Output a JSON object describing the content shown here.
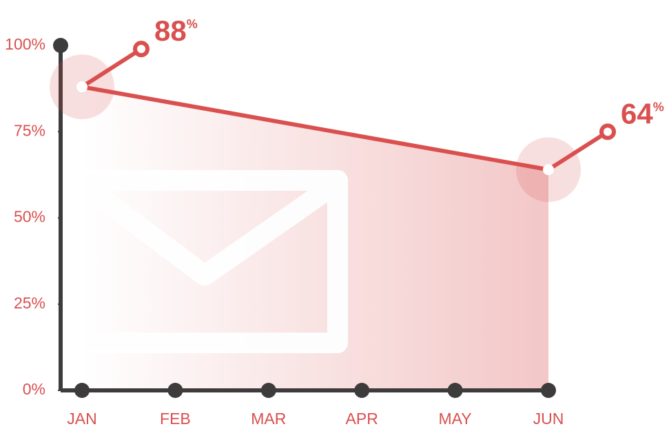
{
  "chart_data": {
    "type": "line",
    "categories": [
      "JAN",
      "FEB",
      "MAR",
      "APR",
      "MAY",
      "JUN"
    ],
    "series": [
      {
        "x": [
          "JAN",
          "JUN"
        ],
        "values": [
          88,
          64
        ],
        "value_labels": [
          "88%",
          "64%"
        ],
        "color": "#d9504f"
      }
    ],
    "ylim": [
      0,
      100
    ],
    "yticks": [
      {
        "value": 0,
        "label": "0%"
      },
      {
        "value": 25,
        "label": "25%"
      },
      {
        "value": 50,
        "label": "50%"
      },
      {
        "value": 75,
        "label": "75%"
      },
      {
        "value": 100,
        "label": "100%"
      }
    ],
    "axis_color": "#3d3b3b"
  }
}
